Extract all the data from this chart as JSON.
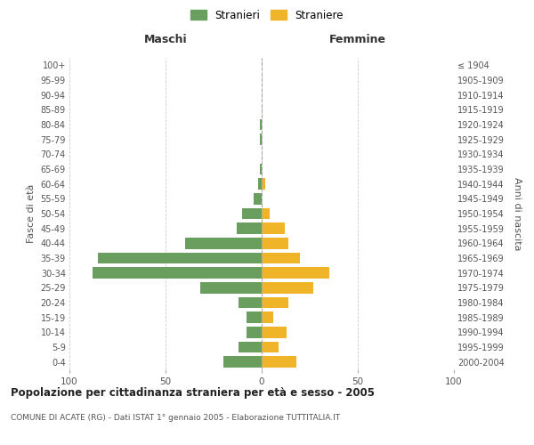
{
  "age_groups_bottom_to_top": [
    "0-4",
    "5-9",
    "10-14",
    "15-19",
    "20-24",
    "25-29",
    "30-34",
    "35-39",
    "40-44",
    "45-49",
    "50-54",
    "55-59",
    "60-64",
    "65-69",
    "70-74",
    "75-79",
    "80-84",
    "85-89",
    "90-94",
    "95-99",
    "100+"
  ],
  "birth_years_bottom_to_top": [
    "2000-2004",
    "1995-1999",
    "1990-1994",
    "1985-1989",
    "1980-1984",
    "1975-1979",
    "1970-1974",
    "1965-1969",
    "1960-1964",
    "1955-1959",
    "1950-1954",
    "1945-1949",
    "1940-1944",
    "1935-1939",
    "1930-1934",
    "1925-1929",
    "1920-1924",
    "1915-1919",
    "1910-1914",
    "1905-1909",
    "≤ 1904"
  ],
  "maschi_bottom_to_top": [
    20,
    12,
    8,
    8,
    12,
    32,
    88,
    85,
    40,
    13,
    10,
    4,
    2,
    1,
    0,
    1,
    1,
    0,
    0,
    0,
    0
  ],
  "femmine_bottom_to_top": [
    18,
    9,
    13,
    6,
    14,
    27,
    35,
    20,
    14,
    12,
    4,
    0,
    2,
    0,
    0,
    0,
    0,
    0,
    0,
    0,
    0
  ],
  "color_maschi": "#6a9e5e",
  "color_femmine": "#f0b429",
  "title": "Popolazione per cittadinanza straniera per età e sesso - 2005",
  "subtitle": "COMUNE DI ACATE (RG) - Dati ISTAT 1° gennaio 2005 - Elaborazione TUTTITALIA.IT",
  "label_maschi": "Maschi",
  "label_femmine": "Femmine",
  "ylabel_left": "Fasce di età",
  "ylabel_right": "Anni di nascita",
  "legend_maschi": "Stranieri",
  "legend_femmine": "Straniere",
  "xlim": 100,
  "background_color": "#ffffff",
  "grid_color": "#cccccc"
}
